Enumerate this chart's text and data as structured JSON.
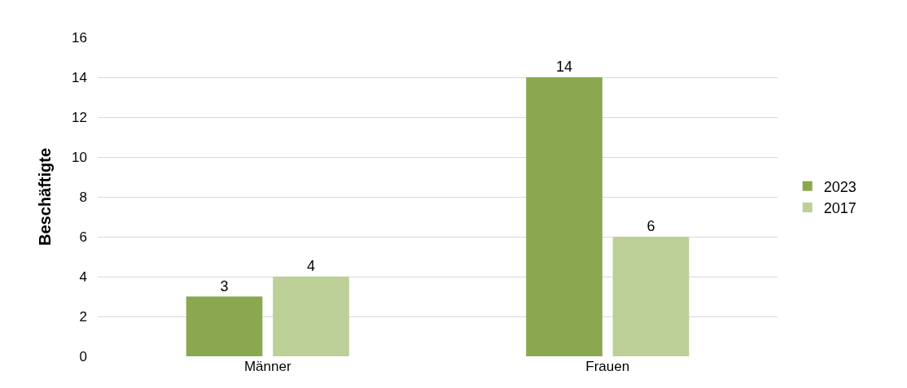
{
  "chart_data": {
    "type": "bar",
    "ylabel": "Beschäftigte",
    "categories": [
      "Männer",
      "Frauen"
    ],
    "series": [
      {
        "name": "2023",
        "color": "#8aa84f",
        "values": [
          3,
          14
        ]
      },
      {
        "name": "2017",
        "color": "#bccf97",
        "values": [
          4,
          6
        ]
      }
    ],
    "ylim": [
      0,
      16
    ],
    "yticks": [
      0,
      2,
      4,
      6,
      8,
      10,
      12,
      14,
      16
    ],
    "grid": "y",
    "legend": "right",
    "data_labels": true
  }
}
